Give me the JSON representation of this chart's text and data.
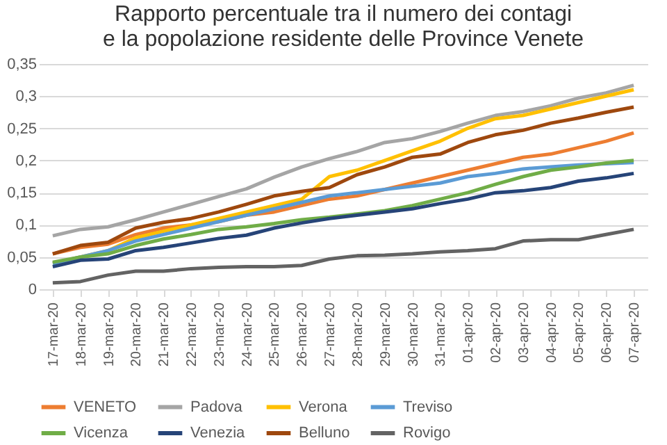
{
  "chart_data": {
    "type": "line",
    "title": "Rapporto percentuale tra il numero dei contagi e la popolazione residente delle Province Venete",
    "categories": [
      "17-mar-20",
      "18-mar-20",
      "19-mar-20",
      "20-mar-20",
      "21-mar-20",
      "22-mar-20",
      "23-mar-20",
      "24-mar-20",
      "25-mar-20",
      "26-mar-20",
      "27-mar-20",
      "28-mar-20",
      "29-mar-20",
      "30-mar-20",
      "31-mar-20",
      "01-apr-20",
      "02-apr-20",
      "03-apr-20",
      "04-apr-20",
      "05-apr-20",
      "06-apr-20",
      "07-apr-20"
    ],
    "series": [
      {
        "name": "VENETO",
        "color": "#ed7d31",
        "values": [
          0.055,
          0.065,
          0.07,
          0.085,
          0.095,
          0.1,
          0.105,
          0.115,
          0.12,
          0.13,
          0.14,
          0.145,
          0.155,
          0.165,
          0.175,
          0.185,
          0.195,
          0.205,
          0.21,
          0.22,
          0.23,
          0.243
        ]
      },
      {
        "name": "Padova",
        "color": "#a5a5a5",
        "values": [
          0.083,
          0.093,
          0.097,
          0.108,
          0.12,
          0.132,
          0.144,
          0.156,
          0.174,
          0.19,
          0.203,
          0.214,
          0.228,
          0.234,
          0.245,
          0.258,
          0.27,
          0.276,
          0.285,
          0.297,
          0.305,
          0.317
        ]
      },
      {
        "name": "Verona",
        "color": "#ffc000",
        "values": [
          0.04,
          0.05,
          0.06,
          0.08,
          0.09,
          0.1,
          0.11,
          0.12,
          0.13,
          0.14,
          0.175,
          0.185,
          0.2,
          0.215,
          0.23,
          0.25,
          0.265,
          0.27,
          0.28,
          0.29,
          0.3,
          0.31
        ]
      },
      {
        "name": "Treviso",
        "color": "#5b9bd5",
        "values": [
          0.04,
          0.05,
          0.06,
          0.075,
          0.085,
          0.095,
          0.105,
          0.115,
          0.125,
          0.135,
          0.145,
          0.15,
          0.155,
          0.16,
          0.165,
          0.175,
          0.18,
          0.187,
          0.19,
          0.193,
          0.195,
          0.197
        ]
      },
      {
        "name": "Vicenza",
        "color": "#70ad47",
        "values": [
          0.042,
          0.05,
          0.055,
          0.068,
          0.078,
          0.085,
          0.093,
          0.097,
          0.102,
          0.108,
          0.112,
          0.117,
          0.122,
          0.13,
          0.14,
          0.15,
          0.163,
          0.175,
          0.185,
          0.19,
          0.196,
          0.2
        ]
      },
      {
        "name": "Venezia",
        "color": "#264478",
        "values": [
          0.035,
          0.045,
          0.047,
          0.06,
          0.065,
          0.072,
          0.079,
          0.084,
          0.095,
          0.103,
          0.11,
          0.115,
          0.12,
          0.125,
          0.133,
          0.14,
          0.15,
          0.153,
          0.158,
          0.168,
          0.173,
          0.18
        ]
      },
      {
        "name": "Belluno",
        "color": "#9e480e",
        "values": [
          0.055,
          0.068,
          0.073,
          0.095,
          0.104,
          0.11,
          0.12,
          0.132,
          0.145,
          0.152,
          0.158,
          0.178,
          0.19,
          0.205,
          0.21,
          0.228,
          0.24,
          0.247,
          0.258,
          0.266,
          0.275,
          0.283
        ]
      },
      {
        "name": "Rovigo",
        "color": "#636363",
        "values": [
          0.01,
          0.012,
          0.022,
          0.028,
          0.028,
          0.032,
          0.034,
          0.035,
          0.035,
          0.037,
          0.047,
          0.052,
          0.053,
          0.055,
          0.058,
          0.06,
          0.063,
          0.075,
          0.077,
          0.077,
          0.085,
          0.093
        ]
      }
    ],
    "ylim": [
      0,
      0.35
    ],
    "yticks": [
      0,
      {
        "value": 0.05,
        "label": "0,05"
      },
      {
        "value": 0.1,
        "label": "0,1"
      },
      {
        "value": 0.15,
        "label": "0,15"
      },
      {
        "value": 0.2,
        "label": "0,2"
      },
      {
        "value": 0.25,
        "label": "0,25"
      },
      {
        "value": 0.3,
        "label": "0,3"
      },
      {
        "value": 0.35,
        "label": "0,35"
      }
    ],
    "grid": "y",
    "legend": "bottom",
    "marker": "none",
    "line_style": "solid"
  }
}
